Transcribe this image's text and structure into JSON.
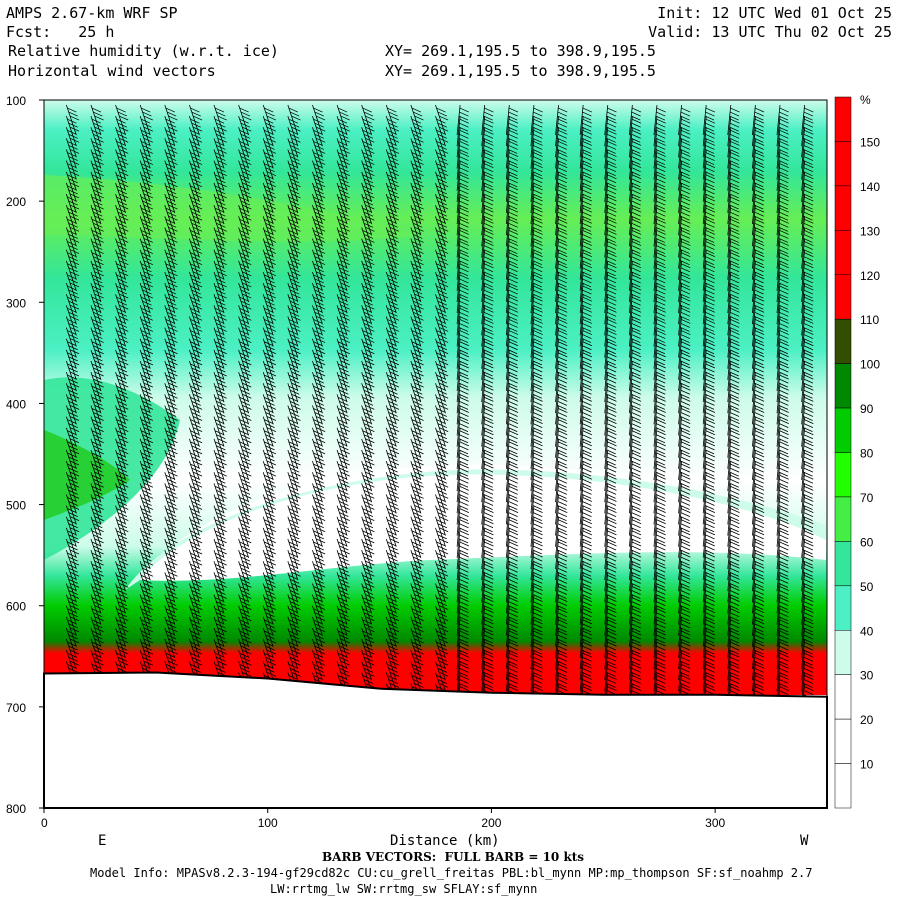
{
  "header": {
    "model": "AMPS 2.67-km WRF SP",
    "fcst": "Fcst:   25 h",
    "field1": "Relative humidity (w.r.t. ice)",
    "field2": "Horizontal wind vectors",
    "init": "Init: 12 UTC Wed 01 Oct 25",
    "valid": "Valid: 13 UTC Thu 02 Oct 25",
    "xy1": "XY= 269.1,195.5 to 398.9,195.5",
    "xy2": "XY= 269.1,195.5 to 398.9,195.5"
  },
  "footer": {
    "barb_note": "BARB VECTORS:  FULL BARB = 10 kts",
    "model_info": "Model Info: MPASv8.2.3-194-gf29cd82c CU:cu_grell_freitas PBL:bl_mynn MP:mp_thompson SF:sf_noahmp 2.7",
    "model_info2": "LW:rrtmg_lw SW:rrtmg_sw SFLAY:sf_mynn"
  },
  "chart_data": {
    "type": "heatmap",
    "title": "Relative humidity (w.r.t. ice)",
    "xlabel": "Distance (km)",
    "ylabel": "",
    "xlim": [
      0,
      350
    ],
    "ylim": [
      800,
      100
    ],
    "x_ticks": [
      0,
      100,
      200,
      300
    ],
    "y_ticks": [
      100,
      200,
      300,
      400,
      500,
      600,
      700,
      800
    ],
    "x_end_labels": [
      "E",
      "W"
    ],
    "colorbar": {
      "unit": "%",
      "labels": [
        10,
        20,
        30,
        40,
        50,
        60,
        70,
        80,
        90,
        100,
        110,
        120,
        130,
        140,
        150
      ],
      "colors": [
        "#ffffff",
        "#ffffff",
        "#ffffff",
        "#cdfcea",
        "#4cf0c4",
        "#33e69a",
        "#44ee44",
        "#22ff00",
        "#00cc00",
        "#008800",
        "#334e00",
        "#ff0000",
        "#ff0000",
        "#ff0000",
        "#ff0000",
        "#ff0000"
      ]
    },
    "rh_profile_west_east": [
      {
        "pressure": 110,
        "rh": 35
      },
      {
        "pressure": 150,
        "rh": 50
      },
      {
        "pressure": 200,
        "rh": 62
      },
      {
        "pressure": 300,
        "rh": 50
      },
      {
        "pressure": 400,
        "rh": 55
      },
      {
        "pressure": 450,
        "rh": 72
      },
      {
        "pressure": 500,
        "rh": 58
      },
      {
        "pressure": 560,
        "rh": 15
      },
      {
        "pressure": 620,
        "rh": 78
      },
      {
        "pressure": 650,
        "rh": 98
      },
      {
        "pressure": 665,
        "rh": 150
      }
    ],
    "terrain_pressure": [
      {
        "x": 0,
        "p": 667
      },
      {
        "x": 50,
        "p": 666
      },
      {
        "x": 100,
        "p": 672
      },
      {
        "x": 150,
        "p": 682
      },
      {
        "x": 200,
        "p": 686
      },
      {
        "x": 250,
        "p": 688
      },
      {
        "x": 300,
        "p": 688
      },
      {
        "x": 350,
        "p": 690
      }
    ]
  }
}
